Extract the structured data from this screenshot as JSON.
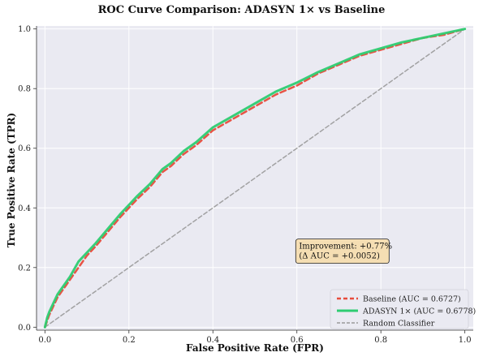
{
  "chart_data": {
    "type": "line",
    "title": "ROC Curve Comparison: ADASYN 1× vs Baseline",
    "xlabel": "False Positive Rate (FPR)",
    "ylabel": "True Positive Rate (TPR)",
    "xlim": [
      -0.02,
      1.02
    ],
    "ylim": [
      -0.01,
      1.01
    ],
    "x_ticks": [
      "0.0",
      "0.2",
      "0.4",
      "0.6",
      "0.8",
      "1.0"
    ],
    "y_ticks": [
      "0.0",
      "0.2",
      "0.4",
      "0.6",
      "0.8",
      "1.0"
    ],
    "grid": true,
    "legend_position": "lower-right",
    "annotation": {
      "line1": "Improvement: +0.77%",
      "line2": "(Δ AUC = +0.0052)",
      "x": 0.605,
      "y": 0.225,
      "background": "#f5deb3"
    },
    "series": [
      {
        "name": "Baseline (AUC = 0.6727)",
        "color": "#e74c3c",
        "style": "dashed",
        "x": [
          0,
          0.005,
          0.01,
          0.02,
          0.03,
          0.04,
          0.05,
          0.06,
          0.08,
          0.1,
          0.12,
          0.15,
          0.18,
          0.2,
          0.22,
          0.25,
          0.28,
          0.3,
          0.33,
          0.36,
          0.4,
          0.45,
          0.5,
          0.55,
          0.6,
          0.65,
          0.7,
          0.75,
          0.8,
          0.85,
          0.9,
          0.95,
          1.0
        ],
        "y": [
          0,
          0.02,
          0.04,
          0.07,
          0.1,
          0.12,
          0.14,
          0.16,
          0.2,
          0.24,
          0.27,
          0.32,
          0.37,
          0.4,
          0.43,
          0.47,
          0.52,
          0.54,
          0.58,
          0.61,
          0.66,
          0.7,
          0.74,
          0.78,
          0.81,
          0.85,
          0.88,
          0.91,
          0.93,
          0.95,
          0.97,
          0.98,
          1.0
        ]
      },
      {
        "name": "ADASYN 1× (AUC = 0.6778)",
        "color": "#2ecc71",
        "style": "solid",
        "x": [
          0,
          0.005,
          0.01,
          0.02,
          0.03,
          0.04,
          0.05,
          0.06,
          0.08,
          0.1,
          0.12,
          0.15,
          0.18,
          0.2,
          0.22,
          0.25,
          0.28,
          0.3,
          0.33,
          0.36,
          0.4,
          0.45,
          0.5,
          0.55,
          0.6,
          0.65,
          0.7,
          0.75,
          0.8,
          0.85,
          0.9,
          0.95,
          1.0
        ],
        "y": [
          0,
          0.03,
          0.05,
          0.08,
          0.11,
          0.13,
          0.15,
          0.17,
          0.22,
          0.25,
          0.28,
          0.33,
          0.38,
          0.41,
          0.44,
          0.48,
          0.53,
          0.55,
          0.59,
          0.62,
          0.67,
          0.71,
          0.75,
          0.79,
          0.82,
          0.855,
          0.885,
          0.915,
          0.935,
          0.955,
          0.97,
          0.985,
          1.0
        ]
      },
      {
        "name": "Random Classifier",
        "color": "#999999",
        "style": "dashed",
        "x": [
          0,
          1
        ],
        "y": [
          0,
          1
        ]
      }
    ]
  }
}
